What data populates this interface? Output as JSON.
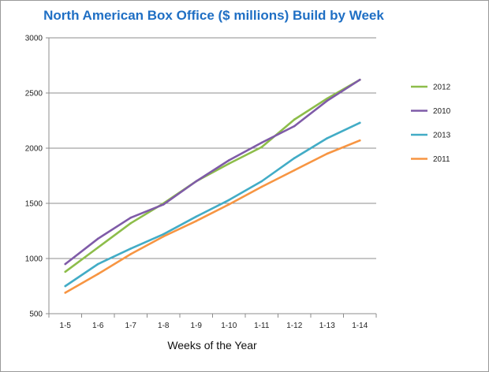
{
  "chart_data": {
    "type": "line",
    "title": "North American Box Office ($ millions)  Build by Week",
    "xlabel": "Weeks of the Year",
    "ylabel": "",
    "categories": [
      "1-5",
      "1-6",
      "1-7",
      "1-8",
      "1-9",
      "1-10",
      "1-11",
      "1-12",
      "1-13",
      "1-14"
    ],
    "ylim": [
      500,
      3000
    ],
    "yticks": [
      500,
      1000,
      1500,
      2000,
      2500,
      3000
    ],
    "grid": true,
    "legend_position": "right",
    "title_color": "#1f6fc4",
    "series": [
      {
        "name": "2012",
        "color": "#8dbd4a",
        "values": [
          880,
          1100,
          1320,
          1500,
          1700,
          1860,
          2010,
          2260,
          2450,
          2620
        ]
      },
      {
        "name": "2010",
        "color": "#7f5ba8",
        "values": [
          950,
          1180,
          1370,
          1490,
          1700,
          1890,
          2050,
          2200,
          2430,
          2620
        ]
      },
      {
        "name": "2013",
        "color": "#42acc6",
        "values": [
          750,
          950,
          1090,
          1220,
          1380,
          1530,
          1700,
          1910,
          2090,
          2230
        ]
      },
      {
        "name": "2011",
        "color": "#f79542",
        "values": [
          690,
          860,
          1040,
          1200,
          1340,
          1490,
          1650,
          1800,
          1950,
          2070
        ]
      }
    ]
  }
}
